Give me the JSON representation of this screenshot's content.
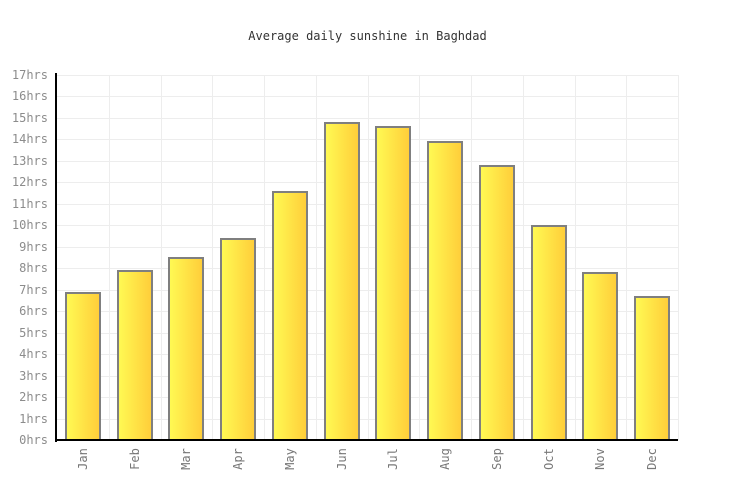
{
  "page": {
    "background": "#ffffff"
  },
  "chart_data": {
    "type": "bar",
    "title": "Average daily sunshine in Baghdad",
    "categories": [
      "Jan",
      "Feb",
      "Mar",
      "Apr",
      "May",
      "Jun",
      "Jul",
      "Aug",
      "Sep",
      "Oct",
      "Nov",
      "Dec"
    ],
    "values": [
      6.9,
      7.9,
      8.5,
      9.4,
      11.6,
      14.8,
      14.6,
      13.9,
      12.8,
      10,
      7.8,
      6.7
    ],
    "unit": "hrs",
    "xlabel": "",
    "ylabel": "",
    "ylim": [
      0,
      17
    ],
    "y_tick_step": 1,
    "y_tick_labels": [
      "0hrs",
      "1hrs",
      "2hrs",
      "3hrs",
      "4hrs",
      "5hrs",
      "6hrs",
      "7hrs",
      "8hrs",
      "9hrs",
      "10hrs",
      "11hrs",
      "12hrs",
      "13hrs",
      "14hrs",
      "15hrs",
      "16hrs",
      "17hrs"
    ],
    "grid": true,
    "legend_position": "none",
    "colors": {
      "bar_gradient_left": "#fff953",
      "bar_gradient_right": "#ffce3a",
      "bar_border": "#7f7f7f",
      "gridline": "#ededed",
      "axis": "#000000",
      "y_tick_label": "#8c8c8c",
      "x_tick_label": "#777777",
      "title": "#333333"
    }
  }
}
